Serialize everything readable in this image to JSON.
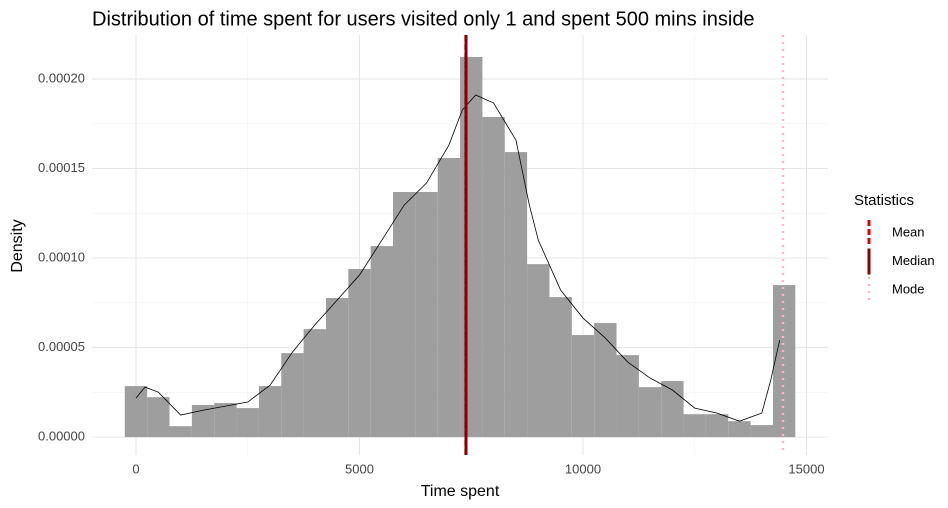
{
  "chart_data": {
    "type": "histogram",
    "title": "Distribution of time spent for users visited only 1 and spent 500 mins inside",
    "x_label": "Time spent",
    "y_label": "Density",
    "bins": [
      -250,
      250,
      750,
      1250,
      1750,
      2250,
      2750,
      3250,
      3750,
      4250,
      4750,
      5250,
      5750,
      6250,
      6750,
      7250,
      7750,
      8250,
      8750,
      9250,
      9750,
      10250,
      10750,
      11250,
      11750,
      12250,
      12750,
      13250,
      13750,
      14250,
      14750
    ],
    "counts": [
      2.85e-05,
      2.23e-05,
      6.1e-06,
      1.79e-05,
      1.9e-05,
      1.62e-05,
      2.85e-05,
      4.69e-05,
      6.03e-05,
      7.77e-05,
      9.39e-05,
      0.0001067,
      0.0001369,
      0.0001369,
      0.0001559,
      0.0002123,
      0.0001788,
      0.0001592,
      9.66e-05,
      7.82e-05,
      5.7e-05,
      6.37e-05,
      4.58e-05,
      2.79e-05,
      3.13e-05,
      1.28e-05,
      1.28e-05,
      8.9e-06,
      6.7e-06,
      8.49e-05
    ],
    "color": "#9e9e9e",
    "density": {
      "color": "#000000",
      "x": [
        0,
        200,
        500,
        1000,
        1500,
        2000,
        2500,
        3000,
        3500,
        4000,
        4500,
        5000,
        5500,
        6000,
        6500,
        7000,
        7300,
        7600,
        8000,
        8500,
        8800,
        9000,
        9500,
        10000,
        10500,
        11000,
        11500,
        12000,
        12500,
        13000,
        13500,
        14000,
        14200,
        14400
      ],
      "y": [
        2.18e-05,
        2.79e-05,
        2.51e-05,
        1.23e-05,
        1.5e-05,
        1.73e-05,
        1.96e-05,
        2.9e-05,
        4.75e-05,
        6.26e-05,
        7.65e-05,
        9.05e-05,
        0.00011,
        0.0001296,
        0.0001419,
        0.0001631,
        0.0001827,
        0.0001911,
        0.0001866,
        0.0001659,
        0.0001296,
        0.00011,
        8.21e-05,
        6.65e-05,
        5.53e-05,
        4.19e-05,
        3.3e-05,
        2.63e-05,
        1.62e-05,
        1.34e-05,
        8.9e-06,
        1.34e-05,
        3.18e-05,
        5.42e-05
      ]
    },
    "legend_title": "Statistics",
    "vlines": [
      {
        "name": "Mean",
        "value": 7380,
        "color": "#e00000",
        "dash": "dashed"
      },
      {
        "name": "Median",
        "value": 7383,
        "color": "#8b0000",
        "dash": "solid"
      },
      {
        "name": "Mode",
        "value": 14474,
        "color": "#ffb6c1",
        "dash": "dotted"
      }
    ],
    "xlim": [
      -984,
      15481
    ],
    "ylim": [
      -1e-05,
      0.0002246
    ],
    "xticks": [
      0,
      5000,
      10000,
      15000
    ],
    "xminorticks": [
      2500,
      7500,
      12500
    ],
    "yticks": [
      {
        "value": 0,
        "label": "0.00000"
      },
      {
        "value": 5e-05,
        "label": "0.00005"
      },
      {
        "value": 0.0001,
        "label": "0.00010"
      },
      {
        "value": 0.00015,
        "label": "0.00015"
      },
      {
        "value": 0.0002,
        "label": "0.00020"
      }
    ],
    "yminorticks": [
      2.5e-05,
      7.5e-05,
      0.000125,
      0.000175
    ],
    "grid": true
  }
}
